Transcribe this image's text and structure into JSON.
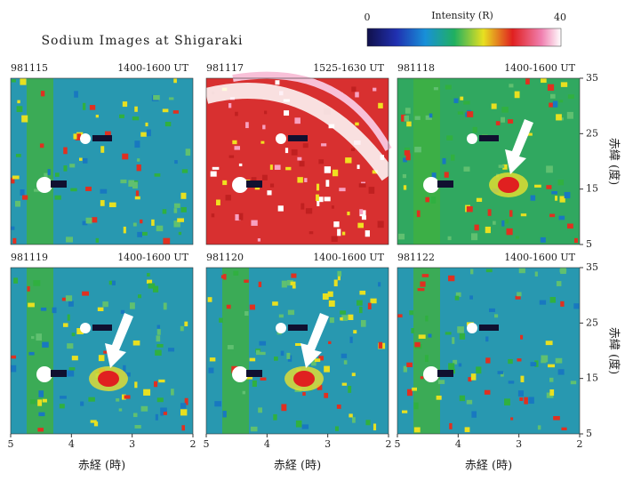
{
  "header": {
    "title": "Sodium Images at Shigaraki"
  },
  "colorbar": {
    "label": "Intensity (R)",
    "ticks": [
      "0",
      "40"
    ]
  },
  "panels": [
    {
      "date": "981115",
      "time": "1400-1600  UT"
    },
    {
      "date": "981117",
      "time": "1525-1630  UT"
    },
    {
      "date": "981118",
      "time": "1400-1600  UT"
    },
    {
      "date": "981119",
      "time": "1400-1600  UT"
    },
    {
      "date": "981120",
      "time": "1400-1600  UT"
    },
    {
      "date": "981122",
      "time": "1400-1600  UT"
    }
  ],
  "axes": {
    "xticks": [
      "5",
      "4",
      "3",
      "2"
    ],
    "yticks": [
      "35",
      "25",
      "15",
      "5"
    ],
    "xlabel": "赤経 (時)",
    "ylabel": "赤緯 (度)"
  }
}
